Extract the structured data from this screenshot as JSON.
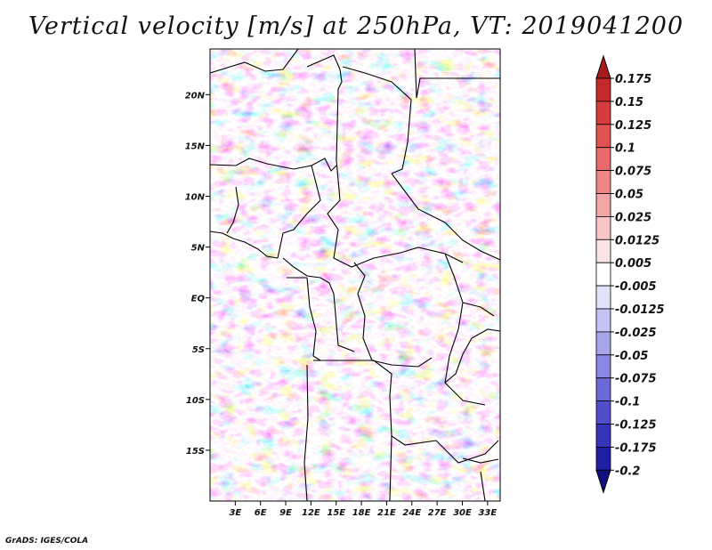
{
  "title": "Vertical velocity [m/s] at 250hPa, VT: 2019041200",
  "credit": "GrADS: IGES/COLA",
  "map": {
    "lon_range": [
      0,
      34.5
    ],
    "lat_range": [
      -20,
      24.5
    ],
    "x_ticks": [
      "3E",
      "6E",
      "9E",
      "12E",
      "15E",
      "18E",
      "21E",
      "24E",
      "27E",
      "30E",
      "33E"
    ],
    "x_tick_values": [
      3,
      6,
      9,
      12,
      15,
      18,
      21,
      24,
      27,
      30,
      33
    ],
    "y_ticks": [
      "20N",
      "15N",
      "10N",
      "5N",
      "EQ",
      "5S",
      "10S",
      "15S"
    ],
    "y_tick_values": [
      20,
      15,
      10,
      5,
      0,
      -5,
      -10,
      -15
    ]
  },
  "colorbar": {
    "labels": [
      "0.175",
      "0.15",
      "0.125",
      "0.1",
      "0.075",
      "0.05",
      "0.025",
      "0.0125",
      "0.005",
      "-0.005",
      "-0.0125",
      "-0.025",
      "-0.05",
      "-0.075",
      "-0.1",
      "-0.125",
      "-0.175",
      "-0.2"
    ],
    "colors": [
      "#b01c1c",
      "#c52a2a",
      "#d63c3c",
      "#e15252",
      "#e86a6a",
      "#ef8787",
      "#f4a5a5",
      "#f8c6c6",
      "#fce4e4",
      "#ffffff",
      "#e2e2fb",
      "#c4c4f4",
      "#a5a5ec",
      "#8888e3",
      "#6b6bd8",
      "#4f4fca",
      "#3535b9",
      "#2020a4",
      "#12128c"
    ],
    "end_colors": {
      "top": "#a51a1a",
      "bottom": "#0f0f80"
    }
  }
}
